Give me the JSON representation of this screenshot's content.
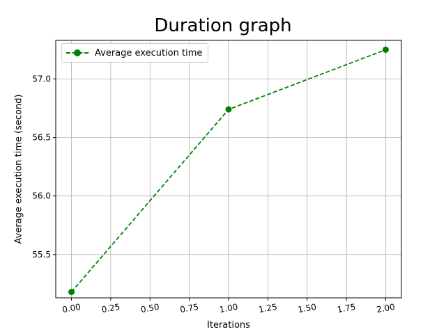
{
  "chart_data": {
    "type": "line",
    "title": "Duration graph",
    "xlabel": "Iterations",
    "ylabel": "Average execution time (second)",
    "xlim": [
      -0.1,
      2.1
    ],
    "ylim": [
      55.13,
      57.33
    ],
    "xticks": [
      0.0,
      0.25,
      0.5,
      0.75,
      1.0,
      1.25,
      1.5,
      1.75,
      2.0
    ],
    "xtick_labels": [
      "0.00",
      "0.25",
      "0.50",
      "0.75",
      "1.00",
      "1.25",
      "1.50",
      "1.75",
      "2.00"
    ],
    "yticks": [
      55.5,
      56.0,
      56.5,
      57.0
    ],
    "ytick_labels": [
      "55.5",
      "56.0",
      "56.5",
      "57.0"
    ],
    "grid": true,
    "legend_position": "top-left",
    "series": [
      {
        "name": "Average execution time",
        "color": "#008000",
        "line_style": "dashed",
        "marker": "circle",
        "x": [
          0,
          1,
          2
        ],
        "y": [
          55.18,
          56.74,
          57.25
        ]
      }
    ]
  }
}
